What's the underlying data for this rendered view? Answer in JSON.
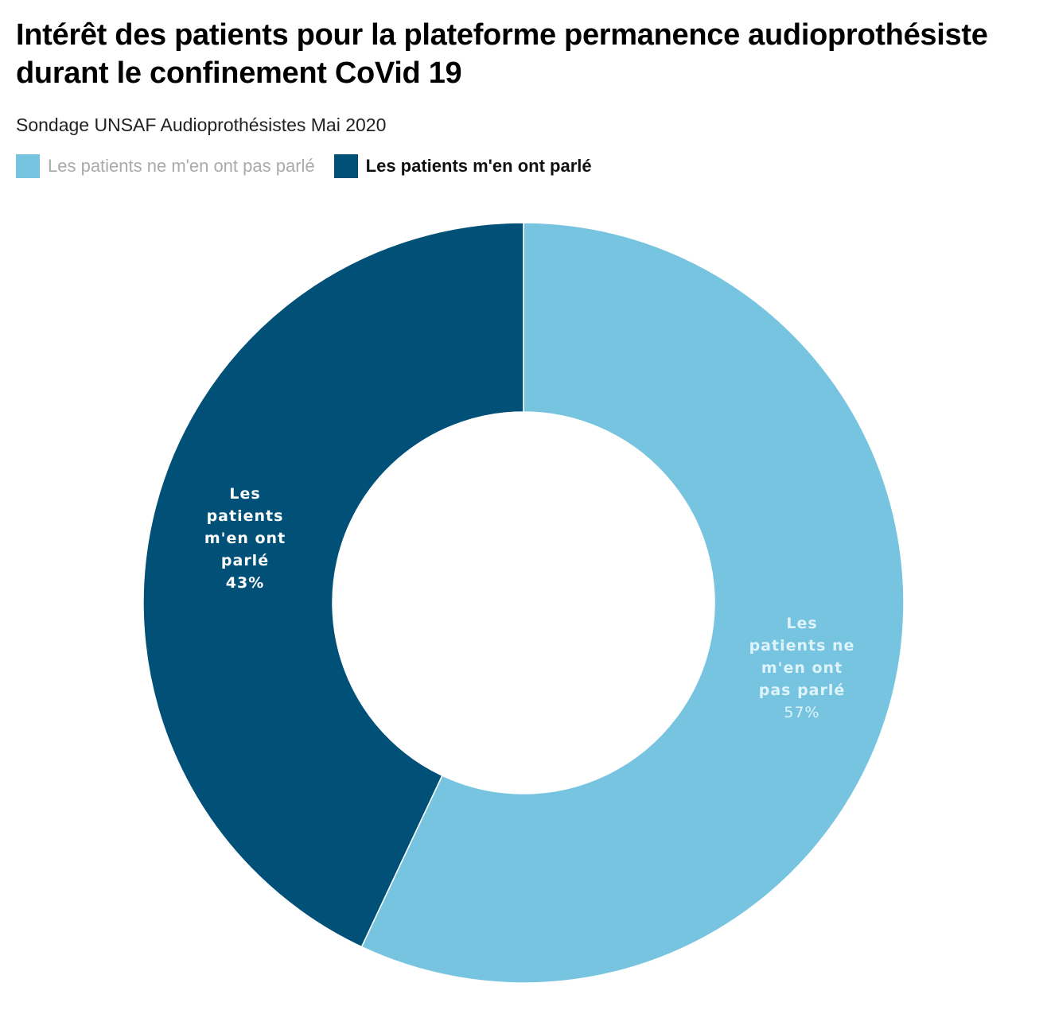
{
  "chart_data": {
    "type": "pie",
    "title": "Intérêt des patients pour la plateforme permanence audioprothésiste durant le confinement CoVid 19",
    "subtitle": "Sondage UNSAF Audioprothésistes Mai 2020",
    "legend_position": "top-left",
    "donut": true,
    "slices": [
      {
        "name": "Les patients ne m'en ont pas parlé",
        "value": 57,
        "value_label": "57%",
        "label_lines": [
          "Les",
          "patients ne",
          "m'en ont",
          "pas parlé"
        ],
        "color": "#76c4e0",
        "label_color": "#dff3fa"
      },
      {
        "name": "Les patients m'en ont parlé",
        "value": 43,
        "value_label": "43%",
        "label_lines": [
          "Les",
          "patients",
          "m'en ont",
          "parlé"
        ],
        "color": "#005078",
        "label_color": "#ffffff"
      }
    ]
  }
}
